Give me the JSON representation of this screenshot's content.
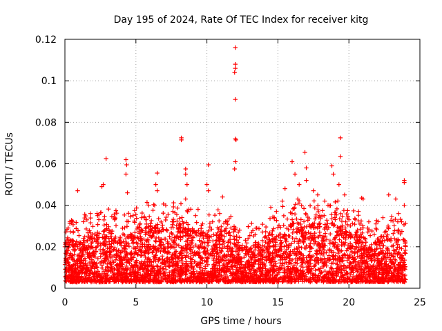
{
  "chart_data": {
    "type": "scatter",
    "title": "Day 195 of 2024, Rate Of TEC Index for receiver kitg",
    "xlabel": "GPS time / hours",
    "ylabel": "ROTI / TECUs",
    "xlim": [
      0,
      25
    ],
    "ylim": [
      0,
      0.12
    ],
    "xticks": [
      0,
      5,
      10,
      15,
      20,
      25
    ],
    "xtick_labels": [
      "0",
      "5",
      "10",
      "15",
      "20",
      "25"
    ],
    "yticks": [
      0,
      0.02,
      0.04,
      0.06,
      0.08,
      0.1,
      0.12
    ],
    "ytick_labels": [
      "0",
      "0.02",
      "0.04",
      "0.06",
      "0.08",
      "0.1",
      "0.12"
    ],
    "grid": true,
    "marker": "plus",
    "marker_color": "#ff0000",
    "x_range_of_data": [
      0,
      24
    ],
    "typical_band": [
      0.003,
      0.025
    ],
    "peaks": [
      {
        "x": 0.0,
        "y": 0.02
      },
      {
        "x": 0.9,
        "y": 0.047
      },
      {
        "x": 1.3,
        "y": 0.024
      },
      {
        "x": 1.8,
        "y": 0.036
      },
      {
        "x": 2.3,
        "y": 0.035
      },
      {
        "x": 2.6,
        "y": 0.049
      },
      {
        "x": 2.7,
        "y": 0.05
      },
      {
        "x": 2.9,
        "y": 0.0625
      },
      {
        "x": 3.5,
        "y": 0.033
      },
      {
        "x": 4.3,
        "y": 0.062
      },
      {
        "x": 4.35,
        "y": 0.0595
      },
      {
        "x": 4.3,
        "y": 0.055
      },
      {
        "x": 4.4,
        "y": 0.046
      },
      {
        "x": 4.8,
        "y": 0.035
      },
      {
        "x": 5.4,
        "y": 0.034
      },
      {
        "x": 5.9,
        "y": 0.04
      },
      {
        "x": 6.4,
        "y": 0.05
      },
      {
        "x": 6.5,
        "y": 0.0555
      },
      {
        "x": 6.5,
        "y": 0.047
      },
      {
        "x": 7.1,
        "y": 0.04
      },
      {
        "x": 7.6,
        "y": 0.037
      },
      {
        "x": 8.2,
        "y": 0.0725
      },
      {
        "x": 8.2,
        "y": 0.0715
      },
      {
        "x": 8.5,
        "y": 0.0575
      },
      {
        "x": 8.5,
        "y": 0.055
      },
      {
        "x": 8.6,
        "y": 0.05
      },
      {
        "x": 8.5,
        "y": 0.043
      },
      {
        "x": 9.2,
        "y": 0.035
      },
      {
        "x": 9.7,
        "y": 0.031
      },
      {
        "x": 10.1,
        "y": 0.0595
      },
      {
        "x": 10.0,
        "y": 0.05
      },
      {
        "x": 10.1,
        "y": 0.047
      },
      {
        "x": 10.4,
        "y": 0.032
      },
      {
        "x": 10.9,
        "y": 0.036
      },
      {
        "x": 11.1,
        "y": 0.044
      },
      {
        "x": 11.4,
        "y": 0.032
      },
      {
        "x": 12.0,
        "y": 0.116
      },
      {
        "x": 12.0,
        "y": 0.108
      },
      {
        "x": 12.0,
        "y": 0.106
      },
      {
        "x": 11.95,
        "y": 0.104
      },
      {
        "x": 12.0,
        "y": 0.091
      },
      {
        "x": 12.0,
        "y": 0.072
      },
      {
        "x": 12.05,
        "y": 0.0715
      },
      {
        "x": 12.0,
        "y": 0.061
      },
      {
        "x": 11.95,
        "y": 0.0575
      },
      {
        "x": 12.3,
        "y": 0.028
      },
      {
        "x": 12.9,
        "y": 0.024
      },
      {
        "x": 13.4,
        "y": 0.022
      },
      {
        "x": 13.9,
        "y": 0.023
      },
      {
        "x": 14.5,
        "y": 0.039
      },
      {
        "x": 14.9,
        "y": 0.037
      },
      {
        "x": 15.3,
        "y": 0.042
      },
      {
        "x": 15.5,
        "y": 0.048
      },
      {
        "x": 16.0,
        "y": 0.061
      },
      {
        "x": 16.2,
        "y": 0.055
      },
      {
        "x": 16.5,
        "y": 0.05
      },
      {
        "x": 16.9,
        "y": 0.0655
      },
      {
        "x": 17.0,
        "y": 0.058
      },
      {
        "x": 17.0,
        "y": 0.052
      },
      {
        "x": 17.5,
        "y": 0.047
      },
      {
        "x": 17.8,
        "y": 0.045
      },
      {
        "x": 18.3,
        "y": 0.042
      },
      {
        "x": 18.8,
        "y": 0.059
      },
      {
        "x": 18.9,
        "y": 0.055
      },
      {
        "x": 19.3,
        "y": 0.05
      },
      {
        "x": 19.4,
        "y": 0.0725
      },
      {
        "x": 19.4,
        "y": 0.0635
      },
      {
        "x": 19.7,
        "y": 0.045
      },
      {
        "x": 20.1,
        "y": 0.03
      },
      {
        "x": 20.9,
        "y": 0.0435
      },
      {
        "x": 21.0,
        "y": 0.043
      },
      {
        "x": 21.4,
        "y": 0.032
      },
      {
        "x": 21.9,
        "y": 0.031
      },
      {
        "x": 22.4,
        "y": 0.034
      },
      {
        "x": 22.8,
        "y": 0.045
      },
      {
        "x": 23.3,
        "y": 0.043
      },
      {
        "x": 23.5,
        "y": 0.036
      },
      {
        "x": 23.9,
        "y": 0.052
      },
      {
        "x": 23.9,
        "y": 0.051
      },
      {
        "x": 23.9,
        "y": 0.04
      }
    ],
    "density_profile": [
      {
        "x": 0,
        "band_top": 0.022
      },
      {
        "x": 1,
        "band_top": 0.021
      },
      {
        "x": 2,
        "band_top": 0.026
      },
      {
        "x": 3,
        "band_top": 0.028
      },
      {
        "x": 4,
        "band_top": 0.023
      },
      {
        "x": 5,
        "band_top": 0.026
      },
      {
        "x": 6,
        "band_top": 0.03
      },
      {
        "x": 7,
        "band_top": 0.028
      },
      {
        "x": 8,
        "band_top": 0.03
      },
      {
        "x": 9,
        "band_top": 0.027
      },
      {
        "x": 10,
        "band_top": 0.026
      },
      {
        "x": 11,
        "band_top": 0.025
      },
      {
        "x": 12,
        "band_top": 0.021
      },
      {
        "x": 13,
        "band_top": 0.019
      },
      {
        "x": 14,
        "band_top": 0.02
      },
      {
        "x": 15,
        "band_top": 0.025
      },
      {
        "x": 16,
        "band_top": 0.031
      },
      {
        "x": 17,
        "band_top": 0.032
      },
      {
        "x": 18,
        "band_top": 0.031
      },
      {
        "x": 19,
        "band_top": 0.03
      },
      {
        "x": 20,
        "band_top": 0.027
      },
      {
        "x": 21,
        "band_top": 0.024
      },
      {
        "x": 22,
        "band_top": 0.022
      },
      {
        "x": 23,
        "band_top": 0.024
      },
      {
        "x": 24,
        "band_top": 0.022
      }
    ]
  }
}
